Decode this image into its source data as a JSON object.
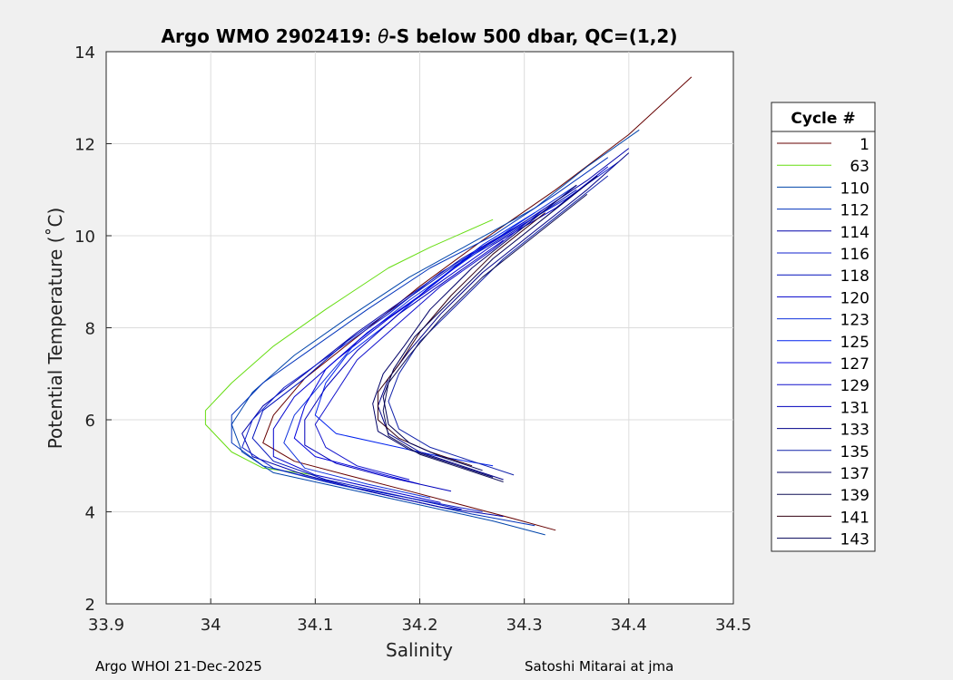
{
  "chart_data": {
    "type": "line",
    "title_prefix": "Argo WMO 2902419: ",
    "title_theta": "θ",
    "title_suffix": "-S below 500 dbar,  QC=(1,2)",
    "xlabel": "Salinity",
    "ylabel": "Potential Temperature (˚C)",
    "xlim": [
      33.9,
      34.5
    ],
    "ylim": [
      2,
      14
    ],
    "xticks": [
      "33.9",
      "34",
      "34.1",
      "34.2",
      "34.3",
      "34.4",
      "34.5"
    ],
    "yticks": [
      "2",
      "4",
      "6",
      "8",
      "10",
      "12",
      "14"
    ],
    "grid": true,
    "legend_title": "Cycle #",
    "legend_position": "right",
    "series": [
      {
        "name": "1",
        "color": "#660000",
        "points": [
          [
            34.33,
            3.6
          ],
          [
            34.29,
            3.85
          ],
          [
            34.24,
            4.15
          ],
          [
            34.19,
            4.45
          ],
          [
            34.13,
            4.8
          ],
          [
            34.08,
            5.1
          ],
          [
            34.05,
            5.5
          ],
          [
            34.06,
            6.1
          ],
          [
            34.09,
            6.9
          ],
          [
            34.14,
            7.8
          ],
          [
            34.2,
            8.9
          ],
          [
            34.26,
            9.9
          ],
          [
            34.33,
            11.0
          ],
          [
            34.4,
            12.2
          ],
          [
            34.46,
            13.45
          ]
        ]
      },
      {
        "name": "63",
        "color": "#66dd11",
        "points": [
          [
            34.1,
            4.8
          ],
          [
            34.05,
            4.95
          ],
          [
            34.02,
            5.3
          ],
          [
            33.995,
            5.9
          ],
          [
            33.995,
            6.2
          ],
          [
            34.02,
            6.8
          ],
          [
            34.06,
            7.6
          ],
          [
            34.11,
            8.4
          ],
          [
            34.17,
            9.3
          ],
          [
            34.21,
            9.75
          ],
          [
            34.27,
            10.35
          ]
        ]
      },
      {
        "name": "110",
        "color": "#0044aa",
        "points": [
          [
            34.32,
            3.5
          ],
          [
            34.27,
            3.8
          ],
          [
            34.2,
            4.15
          ],
          [
            34.13,
            4.5
          ],
          [
            34.06,
            4.85
          ],
          [
            34.03,
            5.3
          ],
          [
            34.02,
            5.9
          ],
          [
            34.04,
            6.6
          ],
          [
            34.08,
            7.4
          ],
          [
            34.13,
            8.2
          ],
          [
            34.19,
            9.1
          ],
          [
            34.25,
            9.85
          ],
          [
            34.31,
            10.6
          ],
          [
            34.36,
            11.5
          ],
          [
            34.41,
            12.3
          ]
        ]
      },
      {
        "name": "112",
        "color": "#0033bb",
        "points": [
          [
            34.31,
            3.7
          ],
          [
            34.25,
            3.95
          ],
          [
            34.18,
            4.3
          ],
          [
            34.11,
            4.65
          ],
          [
            34.05,
            5.0
          ],
          [
            34.02,
            5.5
          ],
          [
            34.02,
            6.1
          ],
          [
            34.05,
            6.8
          ],
          [
            34.1,
            7.6
          ],
          [
            34.15,
            8.4
          ],
          [
            34.21,
            9.3
          ],
          [
            34.27,
            10.0
          ],
          [
            34.33,
            10.9
          ],
          [
            34.38,
            11.7
          ]
        ]
      },
      {
        "name": "114",
        "color": "#0000aa",
        "points": [
          [
            34.28,
            3.9
          ],
          [
            34.22,
            4.1
          ],
          [
            34.15,
            4.45
          ],
          [
            34.09,
            4.8
          ],
          [
            34.04,
            5.2
          ],
          [
            34.03,
            5.7
          ],
          [
            34.05,
            6.3
          ],
          [
            34.09,
            7.0
          ],
          [
            34.14,
            7.9
          ],
          [
            34.19,
            8.7
          ],
          [
            34.24,
            9.5
          ],
          [
            34.3,
            10.3
          ],
          [
            34.36,
            11.2
          ],
          [
            34.4,
            11.9
          ]
        ]
      },
      {
        "name": "116",
        "color": "#1122cc",
        "points": [
          [
            34.26,
            4.0
          ],
          [
            34.19,
            4.3
          ],
          [
            34.12,
            4.6
          ],
          [
            34.06,
            4.95
          ],
          [
            34.03,
            5.4
          ],
          [
            34.04,
            6.0
          ],
          [
            34.07,
            6.7
          ],
          [
            34.12,
            7.5
          ],
          [
            34.17,
            8.3
          ],
          [
            34.22,
            9.2
          ],
          [
            34.28,
            10.0
          ],
          [
            34.34,
            10.8
          ],
          [
            34.39,
            11.6
          ]
        ]
      },
      {
        "name": "118",
        "color": "#0011bb",
        "points": [
          [
            34.24,
            4.05
          ],
          [
            34.18,
            4.35
          ],
          [
            34.11,
            4.7
          ],
          [
            34.06,
            5.1
          ],
          [
            34.04,
            5.6
          ],
          [
            34.05,
            6.2
          ],
          [
            34.09,
            6.9
          ],
          [
            34.13,
            7.7
          ],
          [
            34.18,
            8.5
          ],
          [
            34.23,
            9.3
          ],
          [
            34.29,
            10.1
          ],
          [
            34.35,
            11.0
          ]
        ]
      },
      {
        "name": "120",
        "color": "#0000cc",
        "points": [
          [
            34.22,
            4.2
          ],
          [
            34.16,
            4.5
          ],
          [
            34.1,
            4.8
          ],
          [
            34.06,
            5.2
          ],
          [
            34.06,
            5.8
          ],
          [
            34.08,
            6.5
          ],
          [
            34.12,
            7.3
          ],
          [
            34.17,
            8.2
          ],
          [
            34.22,
            9.0
          ],
          [
            34.27,
            9.8
          ],
          [
            34.33,
            10.6
          ],
          [
            34.38,
            11.5
          ]
        ]
      },
      {
        "name": "123",
        "color": "#1133dd",
        "points": [
          [
            34.21,
            4.3
          ],
          [
            34.15,
            4.6
          ],
          [
            34.09,
            4.95
          ],
          [
            34.07,
            5.5
          ],
          [
            34.08,
            6.1
          ],
          [
            34.11,
            6.9
          ],
          [
            34.14,
            7.7
          ],
          [
            34.19,
            8.6
          ],
          [
            34.24,
            9.4
          ],
          [
            34.29,
            10.2
          ],
          [
            34.35,
            11.1
          ]
        ]
      },
      {
        "name": "125",
        "color": "#0022ee",
        "points": [
          [
            34.27,
            5.0
          ],
          [
            34.22,
            5.2
          ],
          [
            34.16,
            5.5
          ],
          [
            34.12,
            5.7
          ],
          [
            34.1,
            6.1
          ],
          [
            34.11,
            6.8
          ],
          [
            34.13,
            7.4
          ],
          [
            34.17,
            8.1
          ],
          [
            34.21,
            8.9
          ],
          [
            34.26,
            9.8
          ],
          [
            34.31,
            10.5
          ]
        ]
      },
      {
        "name": "127",
        "color": "#0000dd",
        "points": [
          [
            34.2,
            4.6
          ],
          [
            34.15,
            4.9
          ],
          [
            34.1,
            5.2
          ],
          [
            34.08,
            5.6
          ],
          [
            34.09,
            6.3
          ],
          [
            34.11,
            7.1
          ],
          [
            34.15,
            7.9
          ],
          [
            34.2,
            8.7
          ],
          [
            34.25,
            9.6
          ],
          [
            34.3,
            10.3
          ]
        ]
      },
      {
        "name": "129",
        "color": "#1111cc",
        "points": [
          [
            34.19,
            4.7
          ],
          [
            34.14,
            5.0
          ],
          [
            34.11,
            5.4
          ],
          [
            34.1,
            5.9
          ],
          [
            34.12,
            6.6
          ],
          [
            34.14,
            7.3
          ],
          [
            34.18,
            8.1
          ],
          [
            34.22,
            8.9
          ],
          [
            34.27,
            9.7
          ],
          [
            34.32,
            10.6
          ]
        ]
      },
      {
        "name": "131",
        "color": "#0000bb",
        "points": [
          [
            34.23,
            4.45
          ],
          [
            34.17,
            4.75
          ],
          [
            34.12,
            5.05
          ],
          [
            34.09,
            5.45
          ],
          [
            34.09,
            6.0
          ],
          [
            34.11,
            6.7
          ],
          [
            34.14,
            7.5
          ],
          [
            34.18,
            8.3
          ],
          [
            34.23,
            9.1
          ],
          [
            34.28,
            9.9
          ]
        ]
      },
      {
        "name": "133",
        "color": "#000088",
        "points": [
          [
            34.28,
            4.7
          ],
          [
            34.24,
            5.0
          ],
          [
            34.2,
            5.3
          ],
          [
            34.17,
            5.7
          ],
          [
            34.16,
            6.3
          ],
          [
            34.17,
            6.9
          ],
          [
            34.19,
            7.5
          ],
          [
            34.22,
            8.3
          ],
          [
            34.26,
            9.2
          ],
          [
            34.31,
            10.1
          ],
          [
            34.36,
            11.0
          ],
          [
            34.4,
            11.8
          ]
        ]
      },
      {
        "name": "135",
        "color": "#1122aa",
        "points": [
          [
            34.29,
            4.8
          ],
          [
            34.25,
            5.1
          ],
          [
            34.21,
            5.4
          ],
          [
            34.18,
            5.8
          ],
          [
            34.17,
            6.4
          ],
          [
            34.18,
            7.0
          ],
          [
            34.2,
            7.7
          ],
          [
            34.24,
            8.6
          ],
          [
            34.28,
            9.5
          ],
          [
            34.33,
            10.4
          ],
          [
            34.38,
            11.3
          ]
        ]
      },
      {
        "name": "137",
        "color": "#000066",
        "points": [
          [
            34.27,
            4.75
          ],
          [
            34.23,
            5.05
          ],
          [
            34.19,
            5.35
          ],
          [
            34.16,
            5.75
          ],
          [
            34.155,
            6.35
          ],
          [
            34.165,
            7.0
          ],
          [
            34.185,
            7.6
          ],
          [
            34.21,
            8.4
          ],
          [
            34.25,
            9.3
          ],
          [
            34.3,
            10.2
          ],
          [
            34.35,
            11.1
          ]
        ]
      },
      {
        "name": "139",
        "color": "#111155",
        "points": [
          [
            34.28,
            4.65
          ],
          [
            34.24,
            4.95
          ],
          [
            34.2,
            5.25
          ],
          [
            34.17,
            5.65
          ],
          [
            34.165,
            6.2
          ],
          [
            34.17,
            6.8
          ],
          [
            34.19,
            7.4
          ],
          [
            34.22,
            8.2
          ],
          [
            34.26,
            9.1
          ],
          [
            34.31,
            10.0
          ],
          [
            34.36,
            10.9
          ]
        ]
      },
      {
        "name": "141",
        "color": "#330011",
        "points": [
          [
            34.25,
            5.0
          ],
          [
            34.21,
            5.3
          ],
          [
            34.18,
            5.6
          ],
          [
            34.16,
            6.0
          ],
          [
            34.16,
            6.6
          ],
          [
            34.18,
            7.2
          ],
          [
            34.2,
            7.9
          ],
          [
            34.23,
            8.7
          ],
          [
            34.27,
            9.6
          ],
          [
            34.32,
            10.5
          ]
        ]
      },
      {
        "name": "143",
        "color": "#000055",
        "points": [
          [
            34.26,
            4.9
          ],
          [
            34.22,
            5.2
          ],
          [
            34.19,
            5.5
          ],
          [
            34.17,
            5.9
          ],
          [
            34.165,
            6.5
          ],
          [
            34.175,
            7.1
          ],
          [
            34.195,
            7.8
          ],
          [
            34.23,
            8.6
          ],
          [
            34.27,
            9.5
          ],
          [
            34.32,
            10.4
          ],
          [
            34.37,
            11.3
          ]
        ]
      }
    ]
  },
  "footer": {
    "left": "Argo WHOI 21-Dec-2025",
    "right": "Satoshi Mitarai at jma"
  }
}
